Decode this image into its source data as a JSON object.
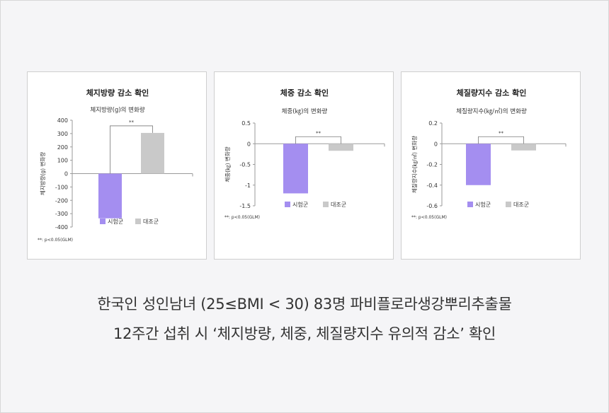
{
  "caption": {
    "line1": "한국인 성인남녀 (25≤BMI < 30) 83명 파비플로라생강뿌리추출물",
    "line2": "12주간 섭취 시 ‘체지방량, 체중, 체질량지수 유의적 감소’ 확인"
  },
  "colors": {
    "treatment": "#a48ef0",
    "control": "#c9c9c9",
    "axis": "#9a9a9a",
    "background": "#f5f5f7"
  },
  "chart_data": [
    {
      "type": "bar",
      "title": "체지방량 감소 확인",
      "subtitle": "체지방량(g)의 변화량",
      "ylabel": "체지방량(g) 변화량",
      "ylim": [
        -400,
        400
      ],
      "yticks": [
        400,
        300,
        200,
        100,
        0,
        -100,
        -200,
        -300,
        -400
      ],
      "ytick_labels": [
        "400",
        "300",
        "200",
        "100",
        "0",
        "-100",
        "-200",
        "-300",
        "-400"
      ],
      "categories": [
        "시험군",
        "대조군"
      ],
      "values": [
        -335,
        305
      ],
      "significance": "**",
      "footnote": "**: p<0.05(GLM)",
      "legend": "bottom"
    },
    {
      "type": "bar",
      "title": "체중 감소 확인",
      "subtitle": "체중(㎏)의 변화량",
      "ylabel": "체중(㎏) 변화량",
      "ylim": [
        -1.5,
        0.5
      ],
      "yticks": [
        0.5,
        0,
        -0.5,
        -1,
        -1.5
      ],
      "ytick_labels": [
        "0.5",
        "0",
        "-0.5",
        "-1",
        "-1.5"
      ],
      "categories": [
        "시험군",
        "대조군"
      ],
      "values": [
        -1.2,
        -0.17
      ],
      "significance": "**",
      "footnote": "**: p<0.05(GLM)",
      "legend": "bottom"
    },
    {
      "type": "bar",
      "title": "체질량지수 감소 확인",
      "subtitle": "체질량지수(㎏/㎡)의 변화량",
      "ylabel": "체질량지수(㎏/㎡) 변화량",
      "ylim": [
        -0.6,
        0.2
      ],
      "yticks": [
        0.2,
        0,
        -0.2,
        -0.4,
        -0.6
      ],
      "ytick_labels": [
        "0.2",
        "0",
        "-0.2",
        "-0.4",
        "-0.6"
      ],
      "categories": [
        "시험군",
        "대조군"
      ],
      "values": [
        -0.4,
        -0.065
      ],
      "significance": "**",
      "footnote": "**: p<0.05(GLM)",
      "legend": "bottom"
    }
  ]
}
